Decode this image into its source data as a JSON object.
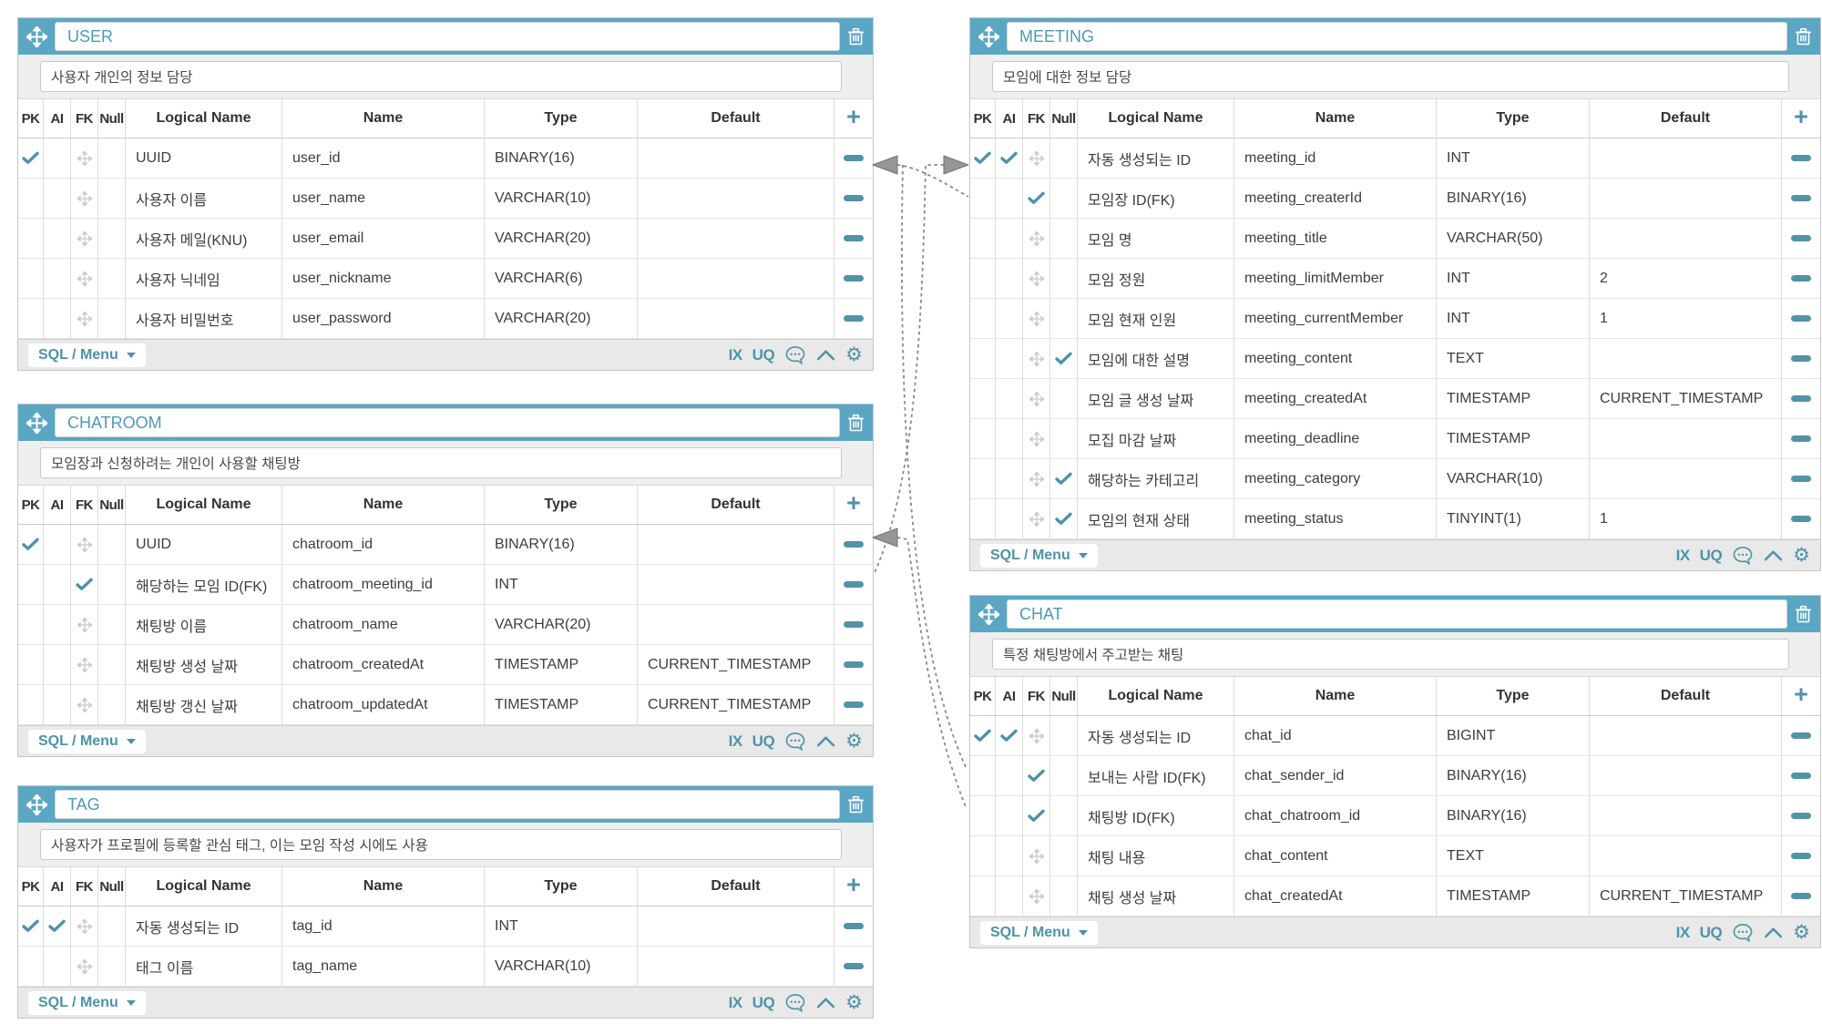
{
  "app": {
    "name": "ERD Editor Canvas"
  },
  "colors": {
    "accent_teal": "#5BA7C3",
    "control_teal": "#4E93A8",
    "title_text_teal": "#4E9AB5",
    "row_text": "#3d3d3d",
    "grid_line": "#dcdcdc",
    "footer_bg": "#e9e9e9",
    "comment_bg": "#efefef",
    "relationship_grey": "#8a8a8a",
    "arrow_fill": "#969696",
    "drag_icon_grey": "#c9cdd2"
  },
  "column_headers": [
    "PK",
    "AI",
    "FK",
    "Null",
    "Logical Name",
    "Name",
    "Type",
    "Default"
  ],
  "footer": {
    "menu_label": "SQL / Menu",
    "index_label": "IX",
    "unique_label": "UQ"
  },
  "tables": [
    {
      "id": "user",
      "title": "USER",
      "comment": "사용자 개인의 정보 담당",
      "columns": [
        {
          "pk": true,
          "ai": false,
          "fk": false,
          "nullable": false,
          "logical": "UUID",
          "name": "user_id",
          "type": "BINARY(16)",
          "default": ""
        },
        {
          "pk": false,
          "ai": false,
          "fk": false,
          "nullable": false,
          "logical": "사용자 이름",
          "name": "user_name",
          "type": "VARCHAR(10)",
          "default": ""
        },
        {
          "pk": false,
          "ai": false,
          "fk": false,
          "nullable": false,
          "logical": "사용자 메일(KNU)",
          "name": "user_email",
          "type": "VARCHAR(20)",
          "default": ""
        },
        {
          "pk": false,
          "ai": false,
          "fk": false,
          "nullable": false,
          "logical": "사용자 닉네임",
          "name": "user_nickname",
          "type": "VARCHAR(6)",
          "default": ""
        },
        {
          "pk": false,
          "ai": false,
          "fk": false,
          "nullable": false,
          "logical": "사용자 비밀번호",
          "name": "user_password",
          "type": "VARCHAR(20)",
          "default": ""
        }
      ]
    },
    {
      "id": "chatroom",
      "title": "CHATROOM",
      "comment": "모임장과 신청하려는 개인이 사용할 채팅방",
      "columns": [
        {
          "pk": true,
          "ai": false,
          "fk": false,
          "nullable": false,
          "logical": "UUID",
          "name": "chatroom_id",
          "type": "BINARY(16)",
          "default": ""
        },
        {
          "pk": false,
          "ai": false,
          "fk": true,
          "nullable": false,
          "logical": "해당하는 모임 ID(FK)",
          "name": "chatroom_meeting_id",
          "type": "INT",
          "default": ""
        },
        {
          "pk": false,
          "ai": false,
          "fk": false,
          "nullable": false,
          "logical": "채팅방 이름",
          "name": "chatroom_name",
          "type": "VARCHAR(20)",
          "default": ""
        },
        {
          "pk": false,
          "ai": false,
          "fk": false,
          "nullable": false,
          "logical": "채팅방 생성 날짜",
          "name": "chatroom_createdAt",
          "type": "TIMESTAMP",
          "default": "CURRENT_TIMESTAMP"
        },
        {
          "pk": false,
          "ai": false,
          "fk": false,
          "nullable": false,
          "logical": "채팅방 갱신 날짜",
          "name": "chatroom_updatedAt",
          "type": "TIMESTAMP",
          "default": "CURRENT_TIMESTAMP"
        }
      ]
    },
    {
      "id": "tag",
      "title": "TAG",
      "comment": "사용자가 프로필에 등록할 관심 태그, 이는 모임 작성 시에도 사용",
      "columns": [
        {
          "pk": true,
          "ai": true,
          "fk": false,
          "nullable": false,
          "logical": "자동 생성되는 ID",
          "name": "tag_id",
          "type": "INT",
          "default": ""
        },
        {
          "pk": false,
          "ai": false,
          "fk": false,
          "nullable": false,
          "logical": "태그 이름",
          "name": "tag_name",
          "type": "VARCHAR(10)",
          "default": ""
        }
      ]
    },
    {
      "id": "meeting",
      "title": "MEETING",
      "comment": "모임에 대한 정보 담당",
      "columns": [
        {
          "pk": true,
          "ai": true,
          "fk": false,
          "nullable": false,
          "logical": "자동 생성되는 ID",
          "name": "meeting_id",
          "type": "INT",
          "default": ""
        },
        {
          "pk": false,
          "ai": false,
          "fk": true,
          "nullable": false,
          "logical": "모임장 ID(FK)",
          "name": "meeting_createrId",
          "type": "BINARY(16)",
          "default": ""
        },
        {
          "pk": false,
          "ai": false,
          "fk": false,
          "nullable": false,
          "logical": "모임 명",
          "name": "meeting_title",
          "type": "VARCHAR(50)",
          "default": ""
        },
        {
          "pk": false,
          "ai": false,
          "fk": false,
          "nullable": false,
          "logical": "모임 정원",
          "name": "meeting_limitMember",
          "type": "INT",
          "default": "2"
        },
        {
          "pk": false,
          "ai": false,
          "fk": false,
          "nullable": false,
          "logical": "모임 현재 인원",
          "name": "meeting_currentMember",
          "type": "INT",
          "default": "1"
        },
        {
          "pk": false,
          "ai": false,
          "fk": false,
          "nullable": true,
          "logical": "모임에 대한 설명",
          "name": "meeting_content",
          "type": "TEXT",
          "default": ""
        },
        {
          "pk": false,
          "ai": false,
          "fk": false,
          "nullable": false,
          "logical": "모임 글 생성 날짜",
          "name": "meeting_createdAt",
          "type": "TIMESTAMP",
          "default": "CURRENT_TIMESTAMP"
        },
        {
          "pk": false,
          "ai": false,
          "fk": false,
          "nullable": false,
          "logical": "모집 마감 날짜",
          "name": "meeting_deadline",
          "type": "TIMESTAMP",
          "default": ""
        },
        {
          "pk": false,
          "ai": false,
          "fk": false,
          "nullable": true,
          "logical": "해당하는 카테고리",
          "name": "meeting_category",
          "type": "VARCHAR(10)",
          "default": ""
        },
        {
          "pk": false,
          "ai": false,
          "fk": false,
          "nullable": true,
          "logical": "모임의 현재 상태",
          "name": "meeting_status",
          "type": "TINYINT(1)",
          "default": "1"
        }
      ]
    },
    {
      "id": "chat",
      "title": "CHAT",
      "comment": "특정 채팅방에서 주고받는 채팅",
      "columns": [
        {
          "pk": true,
          "ai": true,
          "fk": false,
          "nullable": false,
          "logical": "자동 생성되는 ID",
          "name": "chat_id",
          "type": "BIGINT",
          "default": ""
        },
        {
          "pk": false,
          "ai": false,
          "fk": true,
          "nullable": false,
          "logical": "보내는 사람 ID(FK)",
          "name": "chat_sender_id",
          "type": "BINARY(16)",
          "default": ""
        },
        {
          "pk": false,
          "ai": false,
          "fk": true,
          "nullable": false,
          "logical": "채팅방 ID(FK)",
          "name": "chat_chatroom_id",
          "type": "BINARY(16)",
          "default": ""
        },
        {
          "pk": false,
          "ai": false,
          "fk": false,
          "nullable": false,
          "logical": "채팅 내용",
          "name": "chat_content",
          "type": "TEXT",
          "default": ""
        },
        {
          "pk": false,
          "ai": false,
          "fk": false,
          "nullable": false,
          "logical": "채팅 생성 날짜",
          "name": "chat_createdAt",
          "type": "TIMESTAMP",
          "default": "CURRENT_TIMESTAMP"
        }
      ]
    }
  ],
  "relationships": [
    {
      "from": "MEETING.meeting_createrId",
      "to": "USER.user_id"
    },
    {
      "from": "CHATROOM.chatroom_meeting_id",
      "to": "MEETING.meeting_id"
    },
    {
      "from": "CHAT.chat_sender_id",
      "to": "USER.user_id"
    },
    {
      "from": "CHAT.chat_chatroom_id",
      "to": "CHATROOM.chatroom_id"
    }
  ]
}
